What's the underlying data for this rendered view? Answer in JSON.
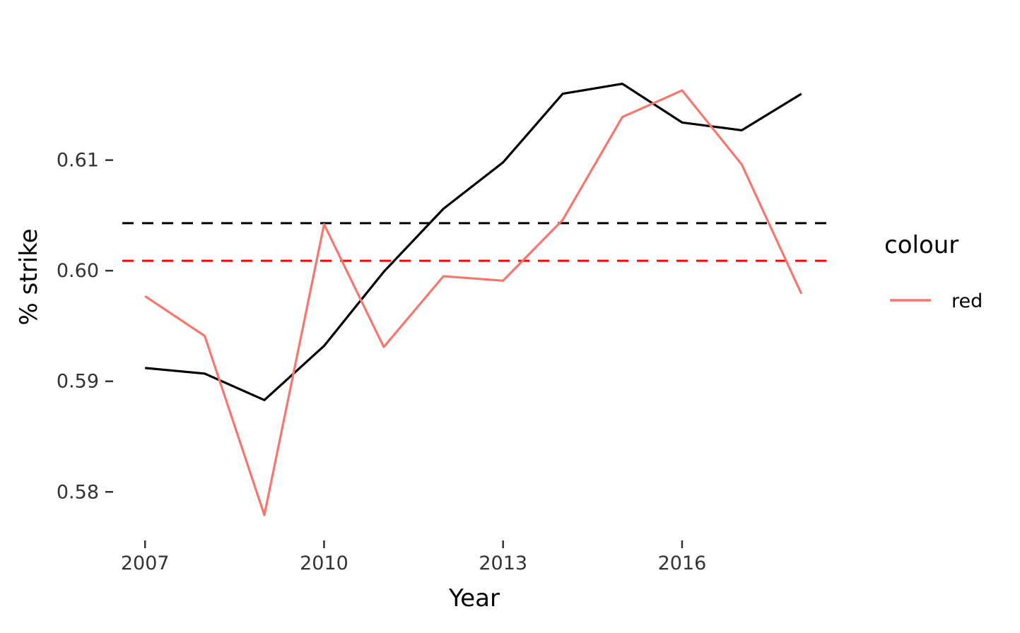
{
  "chart_data": {
    "type": "line",
    "title": "",
    "xlabel": "Year",
    "ylabel": "% strike",
    "x": [
      2007,
      2008,
      2009,
      2010,
      2011,
      2012,
      2013,
      2014,
      2015,
      2016,
      2017,
      2018
    ],
    "x_ticks": [
      "2007",
      "2010",
      "2013",
      "2016"
    ],
    "y_ticks": [
      "0.58",
      "0.59",
      "0.60",
      "0.61"
    ],
    "xlim": [
      2006.5,
      2018.5
    ],
    "ylim": [
      0.5758,
      0.6232
    ],
    "grid": false,
    "legend": {
      "title": "colour",
      "position": "right",
      "entries": [
        {
          "label": "red",
          "color": "#F8766D"
        }
      ]
    },
    "series": [
      {
        "color": "#000000",
        "values": [
          0.5912,
          0.5907,
          0.5883,
          0.5932,
          0.5999,
          0.6056,
          0.6098,
          0.616,
          0.6169,
          0.6134,
          0.6127,
          0.616
        ]
      },
      {
        "name": "red",
        "color": "#F8766D",
        "values": [
          0.5977,
          0.5941,
          0.5779,
          0.6042,
          0.5931,
          0.5995,
          0.5991,
          0.6046,
          0.6139,
          0.6163,
          0.6096,
          0.5979
        ]
      }
    ],
    "hlines": [
      {
        "y": 0.6043,
        "color": "#000000",
        "style": "dashed"
      },
      {
        "y": 0.6009,
        "color": "#FF0000",
        "style": "dashed"
      }
    ]
  }
}
